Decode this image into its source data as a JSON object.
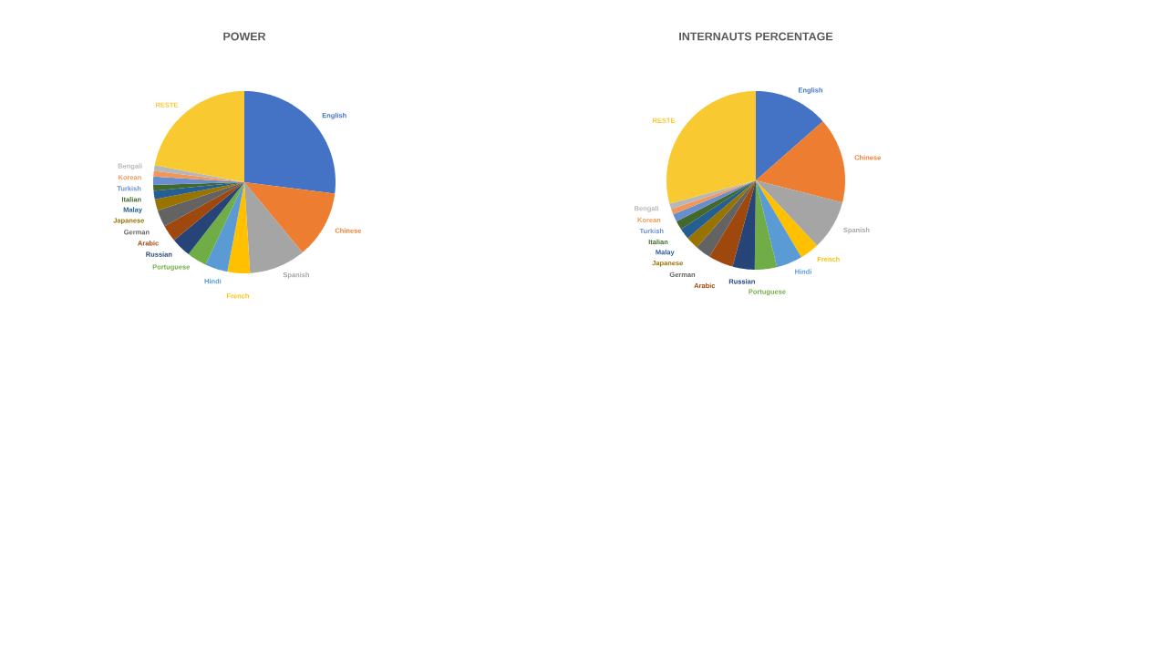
{
  "chart_data": [
    {
      "type": "pie",
      "title": "POWER",
      "categories": [
        "English",
        "Chinese",
        "Spanish",
        "French",
        "Hindi",
        "Portuguese",
        "Russian",
        "Arabic",
        "German",
        "Japanese",
        "Malay",
        "Italian",
        "Turkish",
        "Korean",
        "Bengali",
        "RESTE"
      ],
      "values": [
        27,
        12,
        10,
        4,
        4,
        3.5,
        3.5,
        3,
        3,
        2,
        1.5,
        1,
        1.5,
        1,
        1,
        22
      ],
      "colors": [
        "#4472c4",
        "#ed7d31",
        "#a5a5a5",
        "#ffc000",
        "#5b9bd5",
        "#70ad47",
        "#264478",
        "#9e480e",
        "#636363",
        "#997300",
        "#255e91",
        "#43682b",
        "#698ed0",
        "#f1975a",
        "#b7b7b7",
        "#f9c932"
      ]
    },
    {
      "type": "pie",
      "title": "INTERNAUTS PERCENTAGE",
      "categories": [
        "English",
        "Chinese",
        "Spanish",
        "French",
        "Hindi",
        "Portuguese",
        "Russian",
        "Arabic",
        "German",
        "Japanese",
        "Malay",
        "Italian",
        "Turkish",
        "Korean",
        "Bengali",
        "RESTE"
      ],
      "values": [
        13.5,
        15.5,
        9,
        3.5,
        4.7,
        4,
        4,
        4.5,
        2.8,
        2.3,
        2,
        1.6,
        1.4,
        1,
        1,
        29.2
      ],
      "colors": [
        "#4472c4",
        "#ed7d31",
        "#a5a5a5",
        "#ffc000",
        "#5b9bd5",
        "#70ad47",
        "#264478",
        "#9e480e",
        "#636363",
        "#997300",
        "#255e91",
        "#43682b",
        "#698ed0",
        "#f1975a",
        "#b7b7b7",
        "#f9c932"
      ]
    }
  ]
}
